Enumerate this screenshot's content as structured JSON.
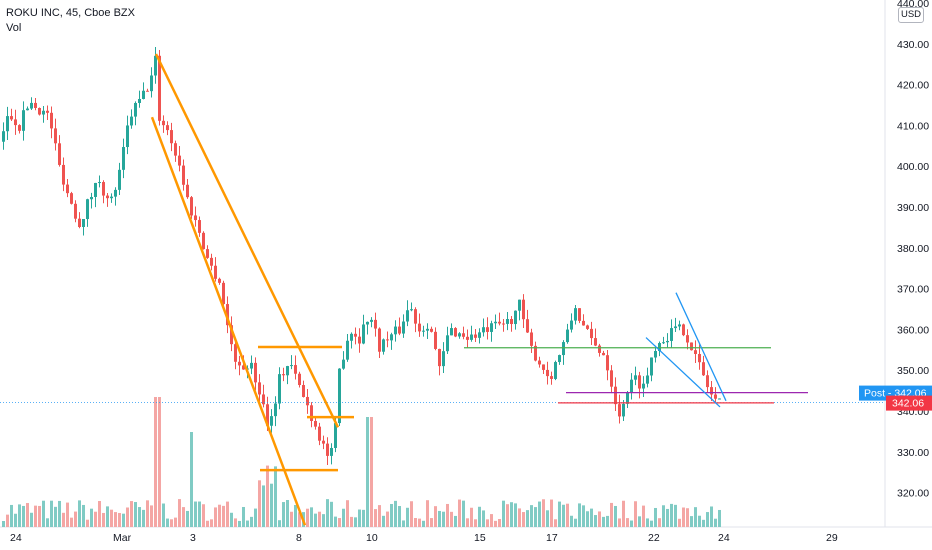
{
  "legend": {
    "symbol_line": "ROKU INC, 45, Cboe BZX",
    "volume_label": "Vol"
  },
  "currency_button": "USD",
  "chart_data": {
    "type": "candlestick",
    "title": "ROKU INC, 45, Cboe BZX",
    "ylim": [
      310,
      440
    ],
    "y_ticks": [
      320,
      330,
      340,
      350,
      360,
      370,
      380,
      390,
      400,
      410,
      420,
      430,
      440
    ],
    "x_ticks": [
      "24",
      "Mar",
      "3",
      "8",
      "10",
      "15",
      "17",
      "22",
      "24",
      "29"
    ],
    "grid": false,
    "colors": {
      "up": "#26a69a",
      "down": "#ef5350",
      "up_volume": "#80cbc4",
      "down_volume": "#f4a6a4",
      "drawing": "#ff9800"
    },
    "price_labels": [
      {
        "text": "Post - 342.06",
        "value": 342.06,
        "color": "#2196f3"
      },
      {
        "text": "342.06",
        "value": 342.06,
        "color": "#f23645"
      }
    ],
    "horizontal_levels": [
      {
        "value": 355.5,
        "color": "#4caf50"
      },
      {
        "value": 344.5,
        "color": "#9c27b0"
      },
      {
        "value": 342.0,
        "color": "#f23645"
      },
      {
        "value": 355.7,
        "color": "#ff9800"
      },
      {
        "value": 338.5,
        "color": "#ff9800"
      },
      {
        "value": 325.5,
        "color": "#ff9800"
      }
    ]
  }
}
